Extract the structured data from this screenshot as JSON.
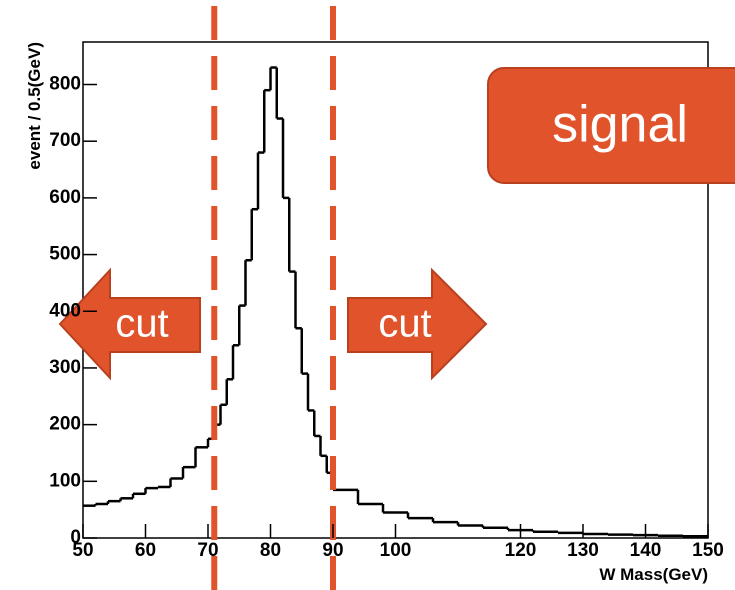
{
  "chart_data": {
    "type": "histogram",
    "bins": [
      50,
      52,
      54,
      56,
      58,
      60,
      62,
      64,
      66,
      68,
      70,
      71,
      72,
      73,
      74,
      75,
      76,
      77,
      78,
      79,
      80,
      81,
      82,
      83,
      84,
      85,
      86,
      87,
      88,
      89,
      90,
      94,
      98,
      102,
      106,
      110,
      114,
      118,
      122,
      126,
      130,
      134,
      138,
      142,
      146,
      150
    ],
    "values": [
      57,
      60,
      65,
      70,
      78,
      88,
      90,
      105,
      125,
      160,
      175,
      200,
      235,
      280,
      340,
      410,
      490,
      580,
      680,
      790,
      830,
      740,
      600,
      470,
      370,
      290,
      225,
      180,
      145,
      115,
      85,
      60,
      45,
      35,
      28,
      22,
      18,
      14,
      11,
      9,
      7,
      6,
      5,
      4,
      3
    ],
    "color": "#000000",
    "xlim": [
      50,
      150
    ],
    "ylim": [
      0,
      875
    ],
    "xticks": [
      50,
      60,
      70,
      80,
      90,
      100,
      120,
      130,
      140,
      150
    ],
    "yticks": [
      0,
      100,
      200,
      300,
      400,
      500,
      600,
      700,
      800
    ],
    "xlabel": "W Mass(GeV)",
    "ylabel": "event / 0.5(GeV)",
    "cut_lines": [
      71,
      90
    ],
    "cut_color": "#e0532b",
    "annotations": {
      "signal": "signal",
      "cut_left": "cut",
      "cut_right": "cut"
    }
  }
}
